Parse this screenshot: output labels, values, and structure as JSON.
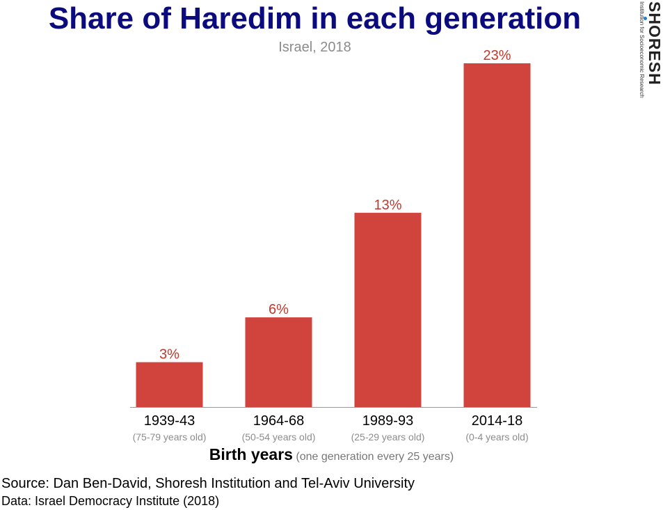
{
  "logo": {
    "name": "SHORESH",
    "tagline": "Institution for Socioeconomic Research"
  },
  "chart_data": {
    "type": "bar",
    "title": "Share of Haredim in each generation",
    "subtitle": "Israel, 2018",
    "categories": [
      "1939-43",
      "1964-68",
      "1989-93",
      "2014-18"
    ],
    "category_sublabels": [
      "(75-79 years old)",
      "(50-54 years old)",
      "(25-29 years old)",
      "(0-4 years old)"
    ],
    "values": [
      3,
      6,
      13,
      23
    ],
    "value_labels": [
      "3%",
      "6%",
      "13%",
      "23%"
    ],
    "xlabel": "Birth years",
    "xlabel_note": "(one generation every 25 years)",
    "ylabel": "",
    "ylim": [
      0,
      23
    ],
    "grid": false,
    "bar_color": "#d0443d"
  },
  "footer": {
    "source": "Source: Dan Ben-David, Shoresh Institution and Tel-Aviv University",
    "data": "Data: Israel Democracy Institute (2018)"
  }
}
